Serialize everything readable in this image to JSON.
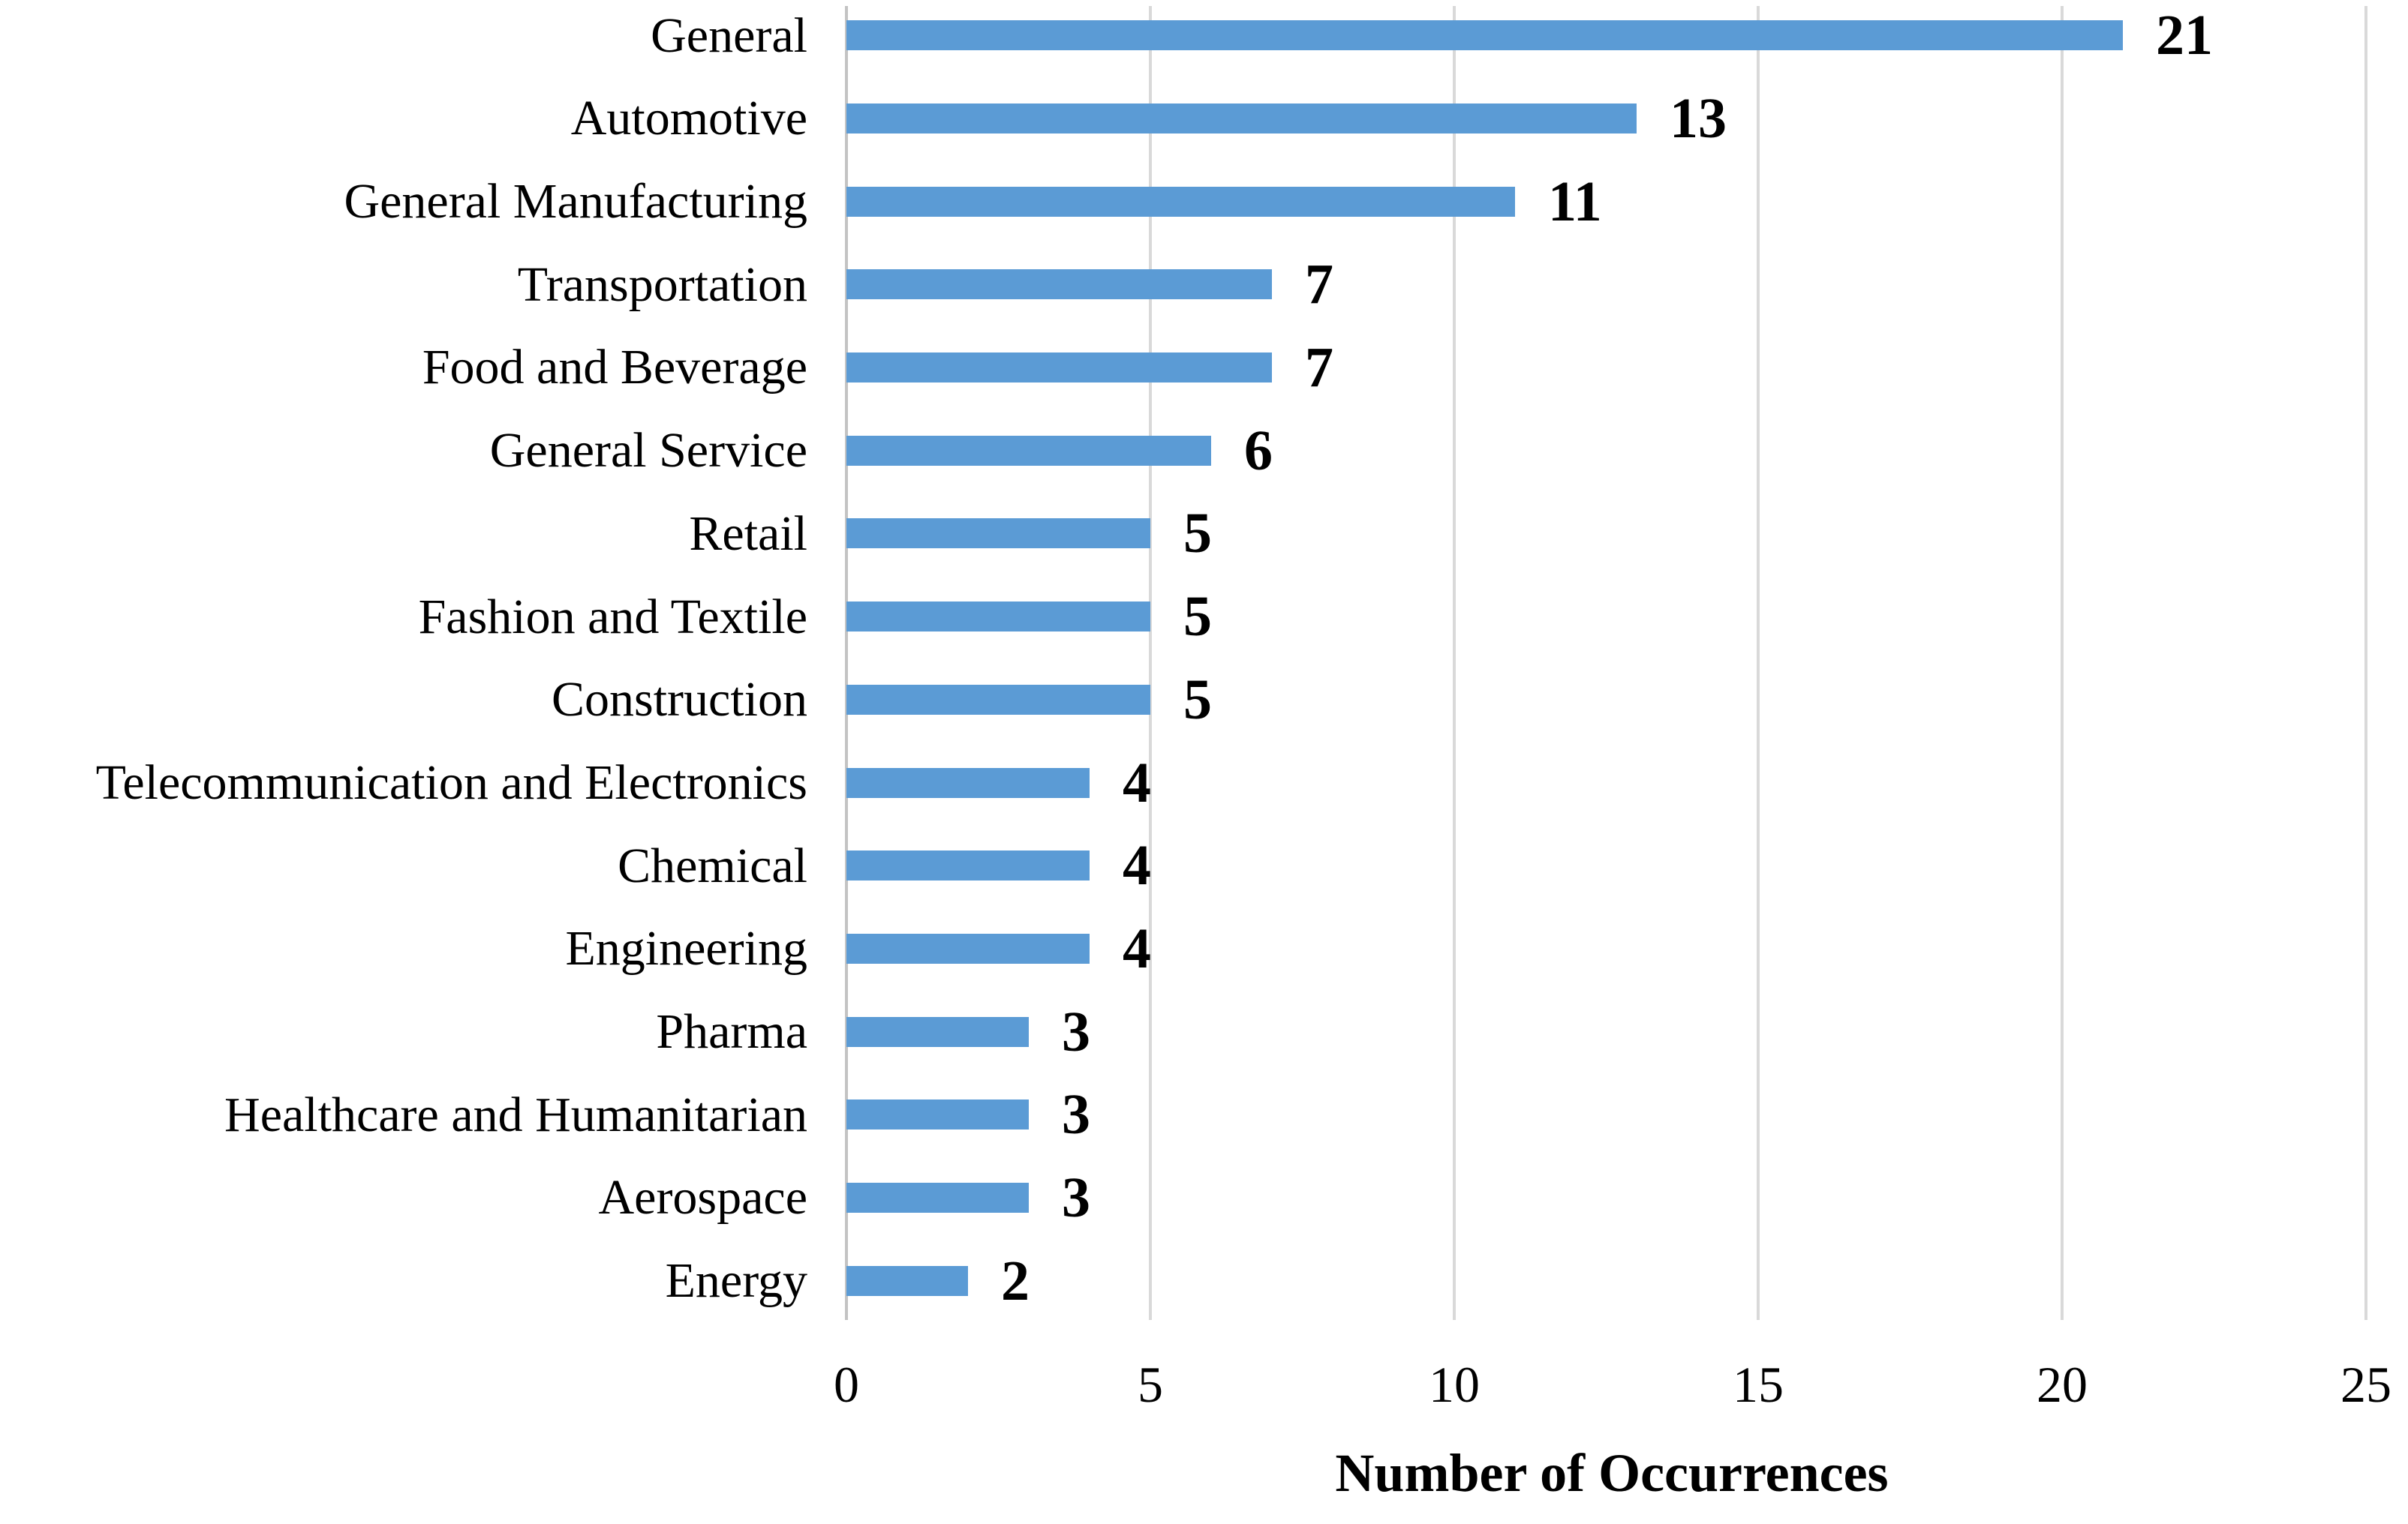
{
  "chart_data": {
    "type": "bar",
    "orientation": "horizontal",
    "title": "",
    "xlabel": "Number of Occurrences",
    "ylabel": "",
    "categories": [
      "General",
      "Automotive",
      "General Manufacturing",
      "Transportation",
      "Food and Beverage",
      "General Service",
      "Retail",
      "Fashion and Textile",
      "Construction",
      "Telecommunication and Electronics",
      "Chemical",
      "Engineering",
      "Pharma",
      "Healthcare and Humanitarian",
      "Aerospace",
      "Energy"
    ],
    "values": [
      21,
      13,
      11,
      7,
      7,
      6,
      5,
      5,
      5,
      4,
      4,
      4,
      3,
      3,
      3,
      2
    ],
    "xlim": [
      0,
      25
    ],
    "xticks": [
      0,
      5,
      10,
      15,
      20,
      25
    ],
    "grid": "vertical-only",
    "legend": "none",
    "value_labels": true,
    "colors": {
      "bar": "#5B9BD5",
      "gridline": "#D9D9D9",
      "axis_line": "#C3C3C3",
      "text": "#000000",
      "background": "#FFFFFF"
    }
  }
}
